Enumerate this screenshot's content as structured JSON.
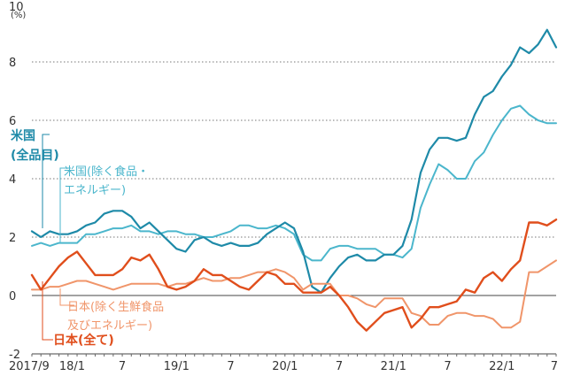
{
  "chart_data": {
    "type": "line",
    "unit": "(%)",
    "ylim": [
      -2,
      10
    ],
    "yticks": [
      -2,
      0,
      2,
      4,
      6,
      8,
      10
    ],
    "grid": true,
    "x_tick_labels": [
      "2017/9",
      "18/1",
      "7",
      "19/1",
      "7",
      "20/1",
      "7",
      "21/1",
      "7",
      "22/1",
      "7"
    ],
    "x_tick_index": [
      0,
      4,
      10,
      16,
      22,
      28,
      34,
      40,
      46,
      52,
      58
    ],
    "series": [
      {
        "name": "米国\n(全品目)",
        "color": "#1e8aa8",
        "width": 2.2,
        "values": [
          2.2,
          2.0,
          2.2,
          2.1,
          2.1,
          2.2,
          2.4,
          2.5,
          2.8,
          2.9,
          2.9,
          2.7,
          2.3,
          2.5,
          2.2,
          1.9,
          1.6,
          1.5,
          1.9,
          2.0,
          1.8,
          1.7,
          1.8,
          1.7,
          1.7,
          1.8,
          2.1,
          2.3,
          2.5,
          2.3,
          1.5,
          0.3,
          0.1,
          0.6,
          1.0,
          1.3,
          1.4,
          1.2,
          1.2,
          1.4,
          1.4,
          1.7,
          2.6,
          4.2,
          5.0,
          5.4,
          5.4,
          5.3,
          5.4,
          6.2,
          6.8,
          7.0,
          7.5,
          7.9,
          8.5,
          8.3,
          8.6,
          9.1,
          8.5
        ]
      },
      {
        "name": "米国(除く食品・\nエネルギー)",
        "color": "#4bb6cc",
        "width": 2.0,
        "values": [
          1.7,
          1.8,
          1.7,
          1.8,
          1.8,
          1.8,
          2.1,
          2.1,
          2.2,
          2.3,
          2.3,
          2.4,
          2.2,
          2.2,
          2.1,
          2.2,
          2.2,
          2.1,
          2.1,
          2.0,
          2.0,
          2.1,
          2.2,
          2.4,
          2.4,
          2.3,
          2.3,
          2.4,
          2.3,
          2.1,
          1.4,
          1.2,
          1.2,
          1.6,
          1.7,
          1.7,
          1.6,
          1.6,
          1.6,
          1.4,
          1.4,
          1.3,
          1.6,
          3.0,
          3.8,
          4.5,
          4.3,
          4.0,
          4.0,
          4.6,
          4.9,
          5.5,
          6.0,
          6.4,
          6.5,
          6.2,
          6.0,
          5.9,
          5.9
        ]
      },
      {
        "name": "日本(除く生鮮食品\n及びエネルギー)",
        "color": "#f0956a",
        "width": 2.0,
        "values": [
          0.2,
          0.2,
          0.3,
          0.3,
          0.4,
          0.5,
          0.5,
          0.4,
          0.3,
          0.2,
          0.3,
          0.4,
          0.4,
          0.4,
          0.4,
          0.3,
          0.4,
          0.4,
          0.5,
          0.6,
          0.5,
          0.5,
          0.6,
          0.6,
          0.7,
          0.8,
          0.8,
          0.9,
          0.8,
          0.6,
          0.2,
          0.4,
          0.4,
          0.4,
          0.0,
          0.0,
          -0.1,
          -0.3,
          -0.4,
          -0.1,
          -0.1,
          -0.1,
          -0.6,
          -0.7,
          -1.0,
          -1.0,
          -0.7,
          -0.6,
          -0.6,
          -0.7,
          -0.7,
          -0.8,
          -1.1,
          -1.1,
          -0.9,
          0.8,
          0.8,
          1.0,
          1.2
        ]
      },
      {
        "name": "日本(全て)",
        "color": "#e04e1c",
        "width": 2.4,
        "values": [
          0.7,
          0.2,
          0.6,
          1.0,
          1.3,
          1.5,
          1.1,
          0.7,
          0.7,
          0.7,
          0.9,
          1.3,
          1.2,
          1.4,
          0.9,
          0.3,
          0.2,
          0.3,
          0.5,
          0.9,
          0.7,
          0.7,
          0.5,
          0.3,
          0.2,
          0.5,
          0.8,
          0.7,
          0.4,
          0.4,
          0.1,
          0.1,
          0.1,
          0.3,
          0.0,
          -0.4,
          -0.9,
          -1.2,
          -0.9,
          -0.6,
          -0.5,
          -0.4,
          -1.1,
          -0.8,
          -0.4,
          -0.4,
          -0.3,
          -0.2,
          0.2,
          0.1,
          0.6,
          0.8,
          0.5,
          0.9,
          1.2,
          2.5,
          2.5,
          2.4,
          2.6
        ]
      }
    ]
  }
}
